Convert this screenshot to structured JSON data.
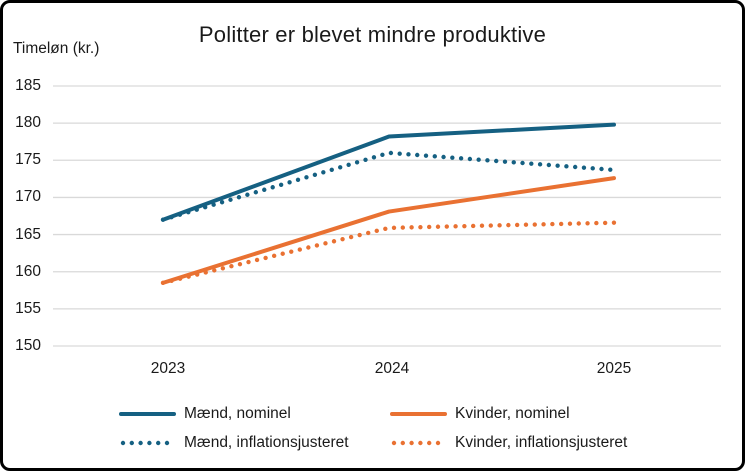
{
  "chart_data": {
    "type": "line",
    "title": "Politter er blevet mindre produktive",
    "ylabel": "Timeløn (kr.)",
    "categories": [
      "2023",
      "2024",
      "2025"
    ],
    "ytick_labels": [
      "185",
      "180",
      "175",
      "170",
      "165",
      "160",
      "155",
      "150"
    ],
    "ylim": [
      150,
      185
    ],
    "grid": true,
    "legend_position": "bottom",
    "colors": {
      "blue": "#156082",
      "orange": "#E97132",
      "gridline": "#D9D9D9",
      "text": "#1a1a1a"
    },
    "series": [
      {
        "name": "Mænd, nominel",
        "color": "#156082",
        "style": "solid",
        "values": [
          167.0,
          178.2,
          179.8
        ]
      },
      {
        "name": "Kvinder, nominel",
        "color": "#E97132",
        "style": "solid",
        "values": [
          158.5,
          168.1,
          172.6
        ]
      },
      {
        "name": "Mænd, inflationsjusteret",
        "color": "#156082",
        "style": "dotted",
        "values": [
          167.0,
          176.0,
          173.7
        ]
      },
      {
        "name": "Kvinder, inflationsjusteret",
        "color": "#E97132",
        "style": "dotted",
        "values": [
          158.5,
          165.9,
          166.6
        ]
      }
    ]
  }
}
